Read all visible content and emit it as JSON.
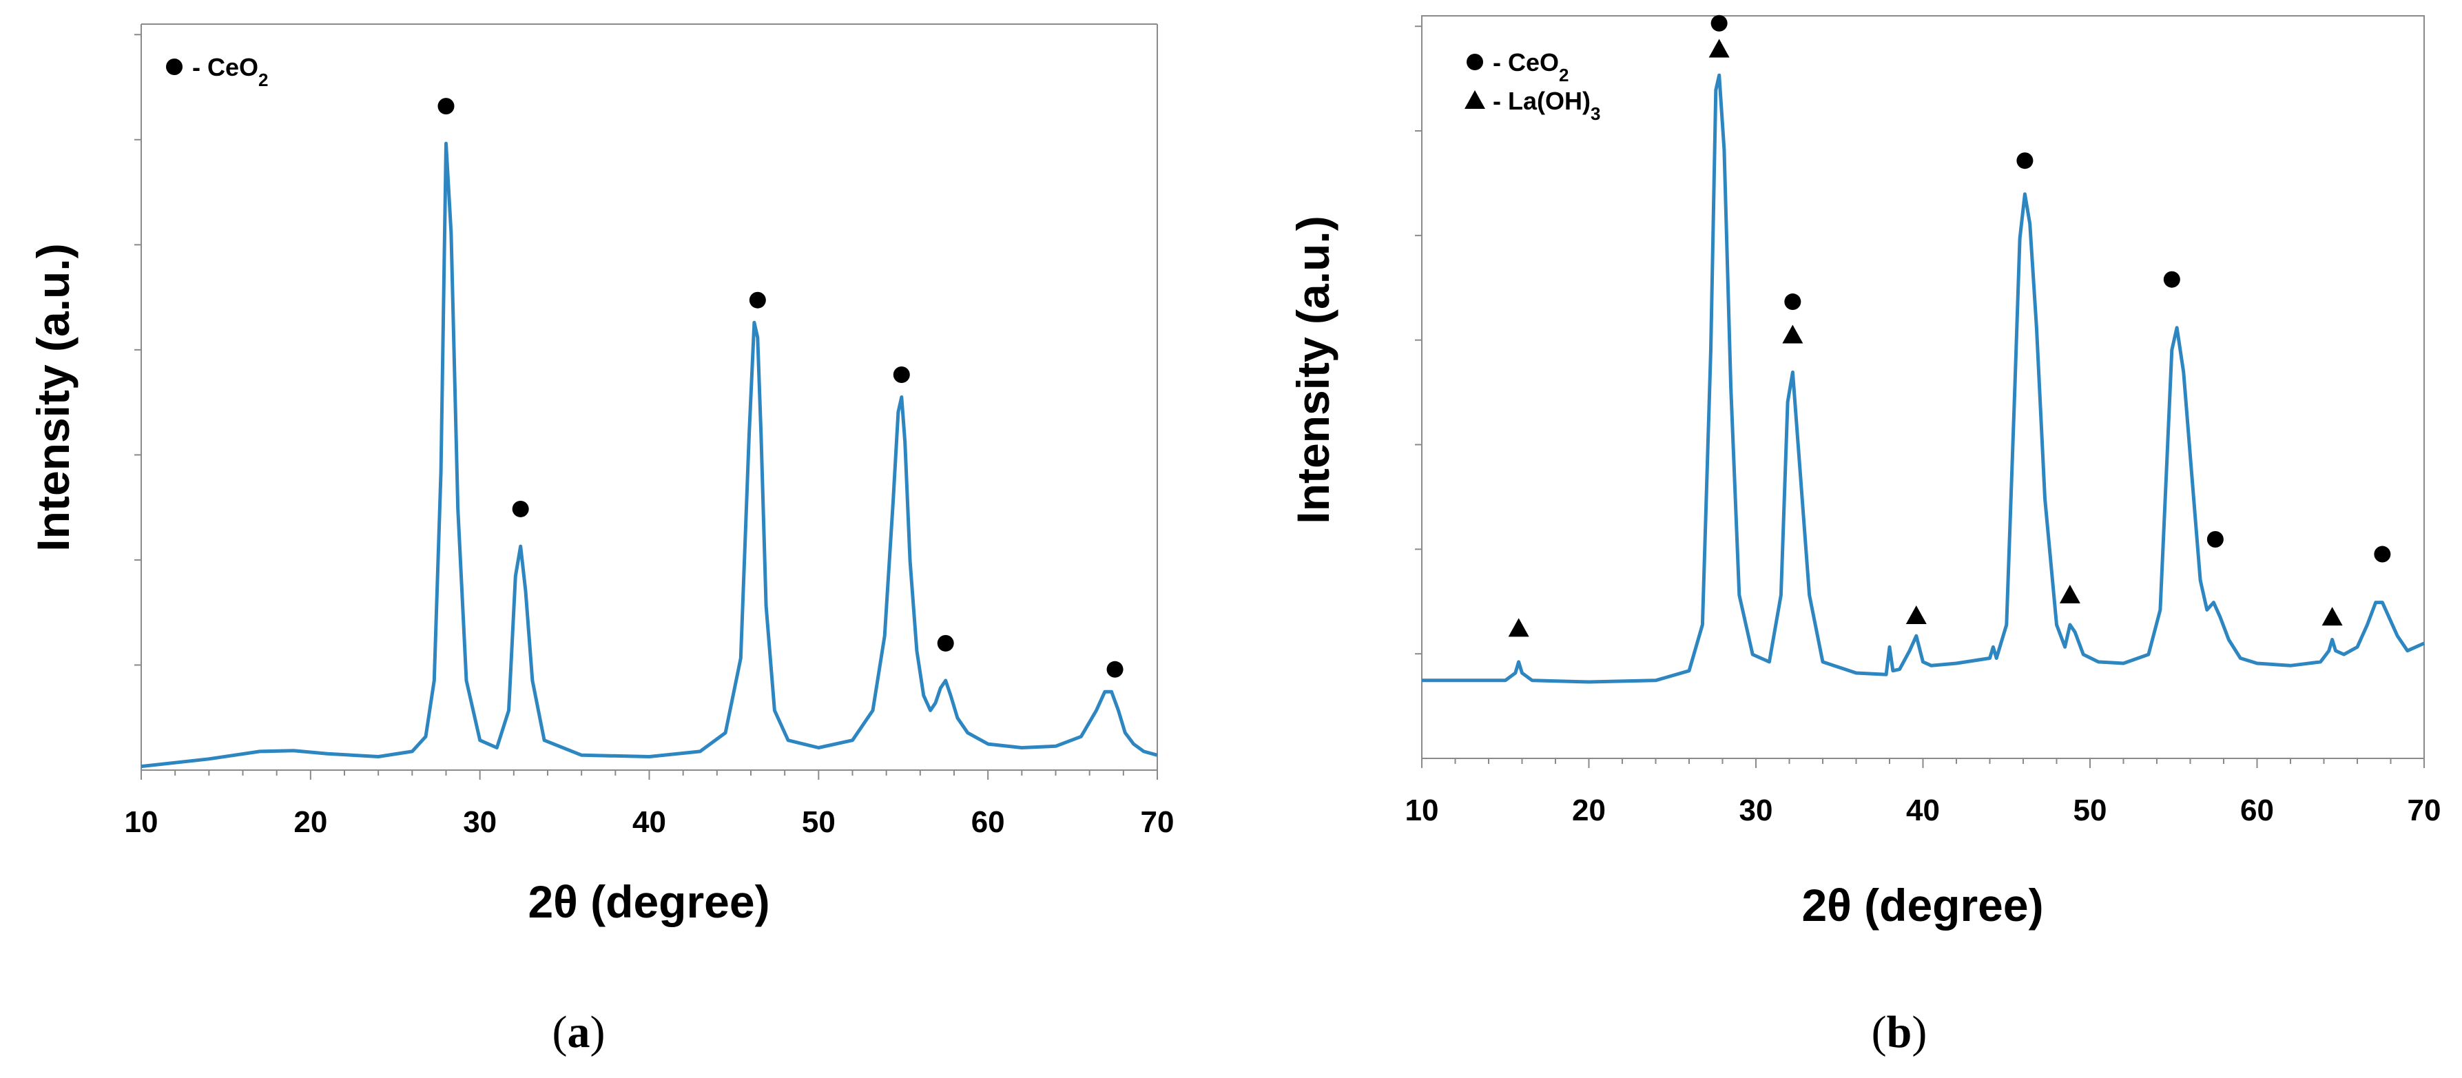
{
  "chart_data": [
    {
      "type": "line",
      "panel_label": "a",
      "xlabel": "2θ (degree)",
      "ylabel": "Intensity (a.u.)",
      "xlim": [
        10,
        70
      ],
      "ylim": [
        0,
        100
      ],
      "xticks": [
        "10",
        "20",
        "30",
        "40",
        "50",
        "60",
        "70"
      ],
      "line_color": "#2e86c1",
      "legend": [
        {
          "marker": "circle",
          "label_main": "- CeO",
          "label_sub": "2"
        }
      ],
      "series": [
        {
          "name": "CeO2",
          "x": [
            10,
            14,
            17,
            19,
            21,
            24,
            26,
            26.8,
            27.3,
            27.7,
            28,
            28.3,
            28.7,
            29.2,
            30,
            31,
            31.7,
            32.1,
            32.4,
            32.7,
            33.1,
            33.8,
            36,
            40,
            43,
            44.5,
            45.4,
            45.9,
            46.2,
            46.4,
            46.6,
            46.9,
            47.4,
            48.2,
            50,
            52,
            53.2,
            53.9,
            54.4,
            54.7,
            54.9,
            55.1,
            55.4,
            55.8,
            56.2,
            56.6,
            56.9,
            57.2,
            57.5,
            57.8,
            58.2,
            58.8,
            60,
            62,
            64,
            65.5,
            66.4,
            66.9,
            67.3,
            67.7,
            68.1,
            68.6,
            69.2,
            70
          ],
          "y": [
            0.5,
            1.5,
            2.5,
            2.6,
            2.2,
            1.8,
            2.5,
            4.5,
            12,
            40,
            84,
            72,
            35,
            12,
            4,
            3,
            8,
            26,
            30,
            24,
            12,
            4,
            2,
            1.8,
            2.5,
            5,
            15,
            45,
            60,
            58,
            45,
            22,
            8,
            4,
            3,
            4,
            8,
            18,
            36,
            48,
            50,
            44,
            28,
            16,
            10,
            8,
            9,
            11,
            12,
            10,
            7,
            5,
            3.5,
            3,
            3.2,
            4.5,
            8,
            10.5,
            10.5,
            8,
            5,
            3.5,
            2.5,
            2
          ]
        }
      ],
      "annotations": [
        {
          "marker": "circle",
          "x": 28,
          "y": 89
        },
        {
          "marker": "circle",
          "x": 32.4,
          "y": 35
        },
        {
          "marker": "circle",
          "x": 46.4,
          "y": 63
        },
        {
          "marker": "circle",
          "x": 54.9,
          "y": 53
        },
        {
          "marker": "circle",
          "x": 57.5,
          "y": 17
        },
        {
          "marker": "circle",
          "x": 67.5,
          "y": 13.5
        }
      ]
    },
    {
      "type": "line",
      "panel_label": "b",
      "xlabel": "2θ (degree)",
      "ylabel": "Intensity (a.u.)",
      "xlim": [
        10,
        70
      ],
      "ylim": [
        0,
        100
      ],
      "xticks": [
        "10",
        "20",
        "30",
        "40",
        "50",
        "60",
        "70"
      ],
      "line_color": "#2e86c1",
      "legend": [
        {
          "marker": "circle",
          "label_main": "- CeO",
          "label_sub": "2"
        },
        {
          "marker": "triangle",
          "label_main": "- La(OH)",
          "label_sub": "3"
        }
      ],
      "series": [
        {
          "name": "CeO2 + La(OH)3",
          "x": [
            10,
            15,
            15.6,
            15.8,
            16,
            16.6,
            20,
            24,
            26,
            26.8,
            27.3,
            27.6,
            27.8,
            28.1,
            28.5,
            29,
            29.8,
            30.8,
            31.5,
            31.9,
            32.2,
            32.6,
            33.2,
            34,
            36,
            37.8,
            38,
            38.2,
            38.6,
            39.2,
            39.6,
            40,
            40.5,
            42,
            44,
            44.2,
            44.4,
            45,
            45.5,
            45.8,
            46.1,
            46.4,
            46.8,
            47.3,
            48,
            48.5,
            48.8,
            49.1,
            49.6,
            50.5,
            52,
            53.5,
            54.2,
            54.6,
            54.9,
            55.2,
            55.6,
            56.1,
            56.6,
            57,
            57.4,
            57.8,
            58.3,
            59,
            60,
            62,
            63.8,
            64.3,
            64.5,
            64.7,
            65.2,
            66,
            66.6,
            67.1,
            67.5,
            67.9,
            68.4,
            69,
            69.5,
            70
          ],
          "y": [
            10.5,
            10.5,
            11.5,
            13,
            11.5,
            10.5,
            10.3,
            10.5,
            11.8,
            18,
            55,
            90,
            92,
            82,
            50,
            22,
            14,
            13,
            22,
            48,
            52,
            40,
            22,
            13,
            11.5,
            11.3,
            15,
            11.8,
            12,
            14.5,
            16.5,
            13,
            12.5,
            12.8,
            13.5,
            15,
            13.5,
            18,
            50,
            70,
            76,
            72,
            58,
            35,
            18,
            15,
            18,
            17,
            14,
            13,
            12.8,
            14,
            20,
            40,
            55,
            58,
            52,
            38,
            24,
            20,
            21,
            19,
            16,
            13.5,
            12.8,
            12.5,
            13,
            14.5,
            16,
            14.5,
            14,
            15,
            18,
            21,
            21,
            19,
            16.5,
            14.5,
            15,
            15.5
          ]
        }
      ],
      "annotations": [
        {
          "marker": "triangle",
          "x": 15.8,
          "y": 17.5
        },
        {
          "marker": "triangle",
          "x": 27.8,
          "y": 95.5
        },
        {
          "marker": "circle",
          "x": 27.8,
          "y": 99
        },
        {
          "marker": "triangle",
          "x": 32.2,
          "y": 57
        },
        {
          "marker": "circle",
          "x": 32.2,
          "y": 61.5
        },
        {
          "marker": "triangle",
          "x": 39.6,
          "y": 19.2
        },
        {
          "marker": "circle",
          "x": 46.1,
          "y": 80.5
        },
        {
          "marker": "triangle",
          "x": 48.8,
          "y": 22
        },
        {
          "marker": "circle",
          "x": 54.9,
          "y": 64.5
        },
        {
          "marker": "circle",
          "x": 57.5,
          "y": 29.5
        },
        {
          "marker": "triangle",
          "x": 64.5,
          "y": 19
        },
        {
          "marker": "circle",
          "x": 67.5,
          "y": 27.5
        }
      ]
    }
  ]
}
